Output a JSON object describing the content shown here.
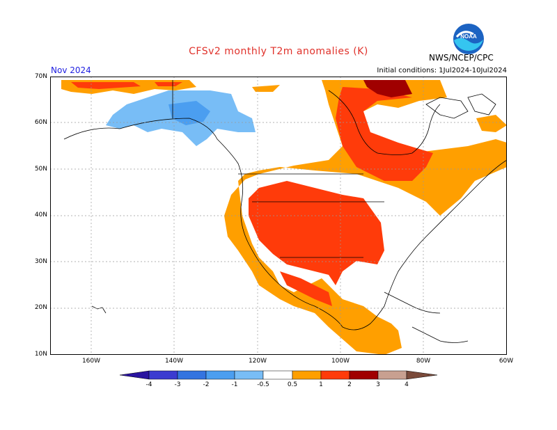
{
  "header": {
    "title": "CFSv2 monthly T2m anomalies (K)",
    "month": "Nov 2024",
    "agency": "NWS/NCEP/CPC",
    "initial_conditions": "Initial conditions: 1Jul2024-10Jul2024"
  },
  "map": {
    "lat_labels": [
      "70N",
      "60N",
      "50N",
      "40N",
      "30N",
      "20N",
      "10N"
    ],
    "lon_labels": [
      "160W",
      "140W",
      "120W",
      "100W",
      "80W",
      "60W"
    ]
  },
  "legend": {
    "tick_labels": [
      "-4",
      "-3",
      "-2",
      "-1",
      "-0.5",
      "0.5",
      "1",
      "2",
      "3",
      "4"
    ],
    "colors": {
      "lt_-4": "#2a14a0",
      "-4_-3": "#3b3bd0",
      "-3_-2": "#3474e0",
      "-2_-1": "#4b9ef0",
      "-1_-0.5": "#78bdf6",
      "-0.5_0.5": "#ffffff",
      "0.5_1": "#ff9f00",
      "1_2": "#ff3b0a",
      "2_3": "#a00000",
      "3_4": "#c8a090",
      "gt_4": "#7a4a3a"
    }
  },
  "logo": {
    "text": "NOAA"
  }
}
